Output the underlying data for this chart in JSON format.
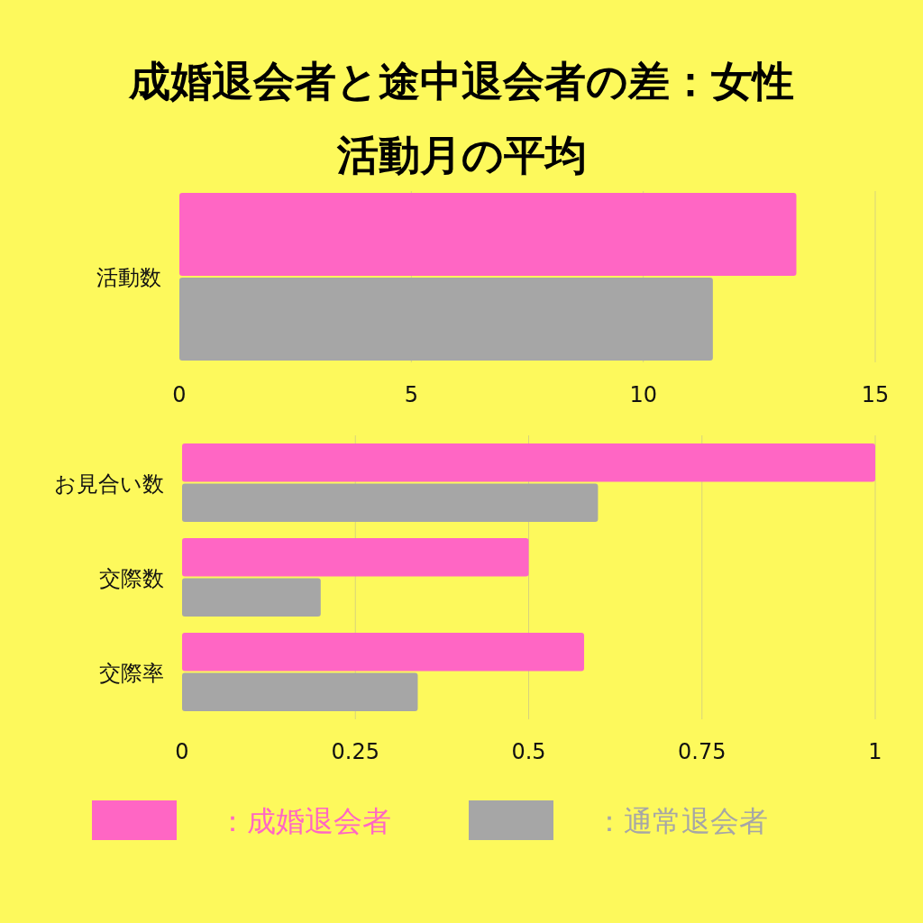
{
  "chart_data": [
    {
      "type": "bar",
      "orientation": "horizontal",
      "title": "成婚退会者と途中退会者の差：女性",
      "subtitle": "活動月の平均",
      "categories": [
        "活動数"
      ],
      "series": [
        {
          "color": "#ff66c4",
          "values": [
            13.3
          ]
        },
        {
          "color": "#a6a6a6",
          "values": [
            11.5
          ]
        }
      ],
      "xlim": [
        0,
        15
      ],
      "xticks": [
        0,
        5,
        10,
        15
      ],
      "grid": "x",
      "legend": false
    },
    {
      "type": "bar",
      "orientation": "horizontal",
      "categories": [
        "お見合い数",
        "交際数",
        "交際率"
      ],
      "series": [
        {
          "name": "：成婚退会者",
          "color": "#ff66c4",
          "values": [
            1.0,
            0.5,
            0.58
          ]
        },
        {
          "name": "：通常退会者",
          "color": "#a6a6a6",
          "values": [
            0.6,
            0.2,
            0.34
          ]
        }
      ],
      "xlim": [
        0,
        1
      ],
      "xticks": [
        0,
        0.25,
        0.5,
        0.75,
        1
      ],
      "grid": "x",
      "legend": "bottom"
    }
  ]
}
